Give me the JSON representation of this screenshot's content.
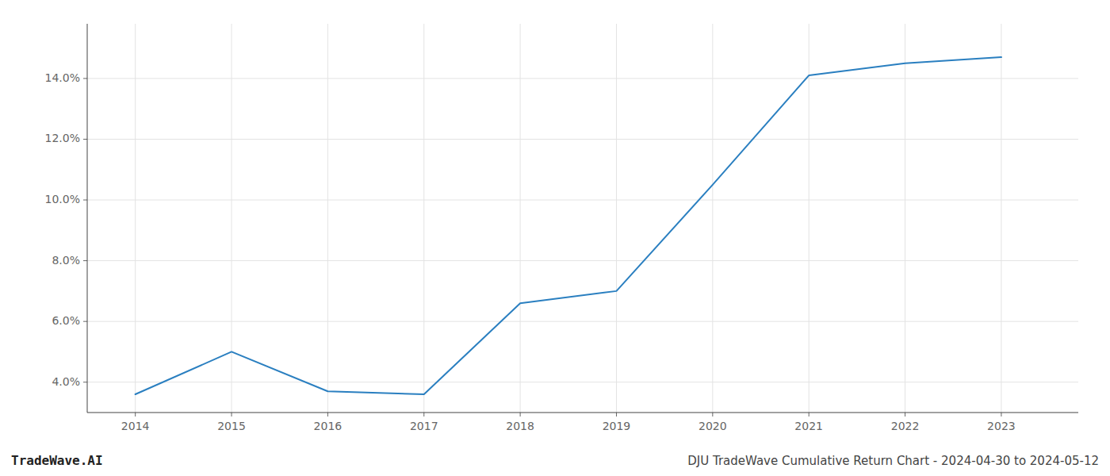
{
  "chart_data": {
    "type": "line",
    "title": "DJU TradeWave Cumulative Return Chart - 2024-04-30 to 2024-05-12",
    "annotations": [
      "TradeWave.AI"
    ],
    "x": [
      2014,
      2015,
      2016,
      2017,
      2018,
      2019,
      2020,
      2021,
      2022,
      2023
    ],
    "values": [
      3.6,
      5.0,
      3.7,
      3.6,
      6.6,
      7.0,
      10.5,
      14.1,
      14.5,
      14.7
    ],
    "color": "#2a7fc0",
    "xlim": [
      2013.5,
      2023.8
    ],
    "xticks": [
      2014,
      2015,
      2016,
      2017,
      2018,
      2019,
      2020,
      2021,
      2022,
      2023
    ],
    "ylim": [
      3.0,
      15.8
    ],
    "yticks": [
      {
        "value": 4.0,
        "label": "4.0%"
      },
      {
        "value": 6.0,
        "label": "6.0%"
      },
      {
        "value": 8.0,
        "label": "8.0%"
      },
      {
        "value": 10.0,
        "label": "10.0%"
      },
      {
        "value": 12.0,
        "label": "12.0%"
      },
      {
        "value": 14.0,
        "label": "14.0%"
      }
    ],
    "grid": true
  }
}
